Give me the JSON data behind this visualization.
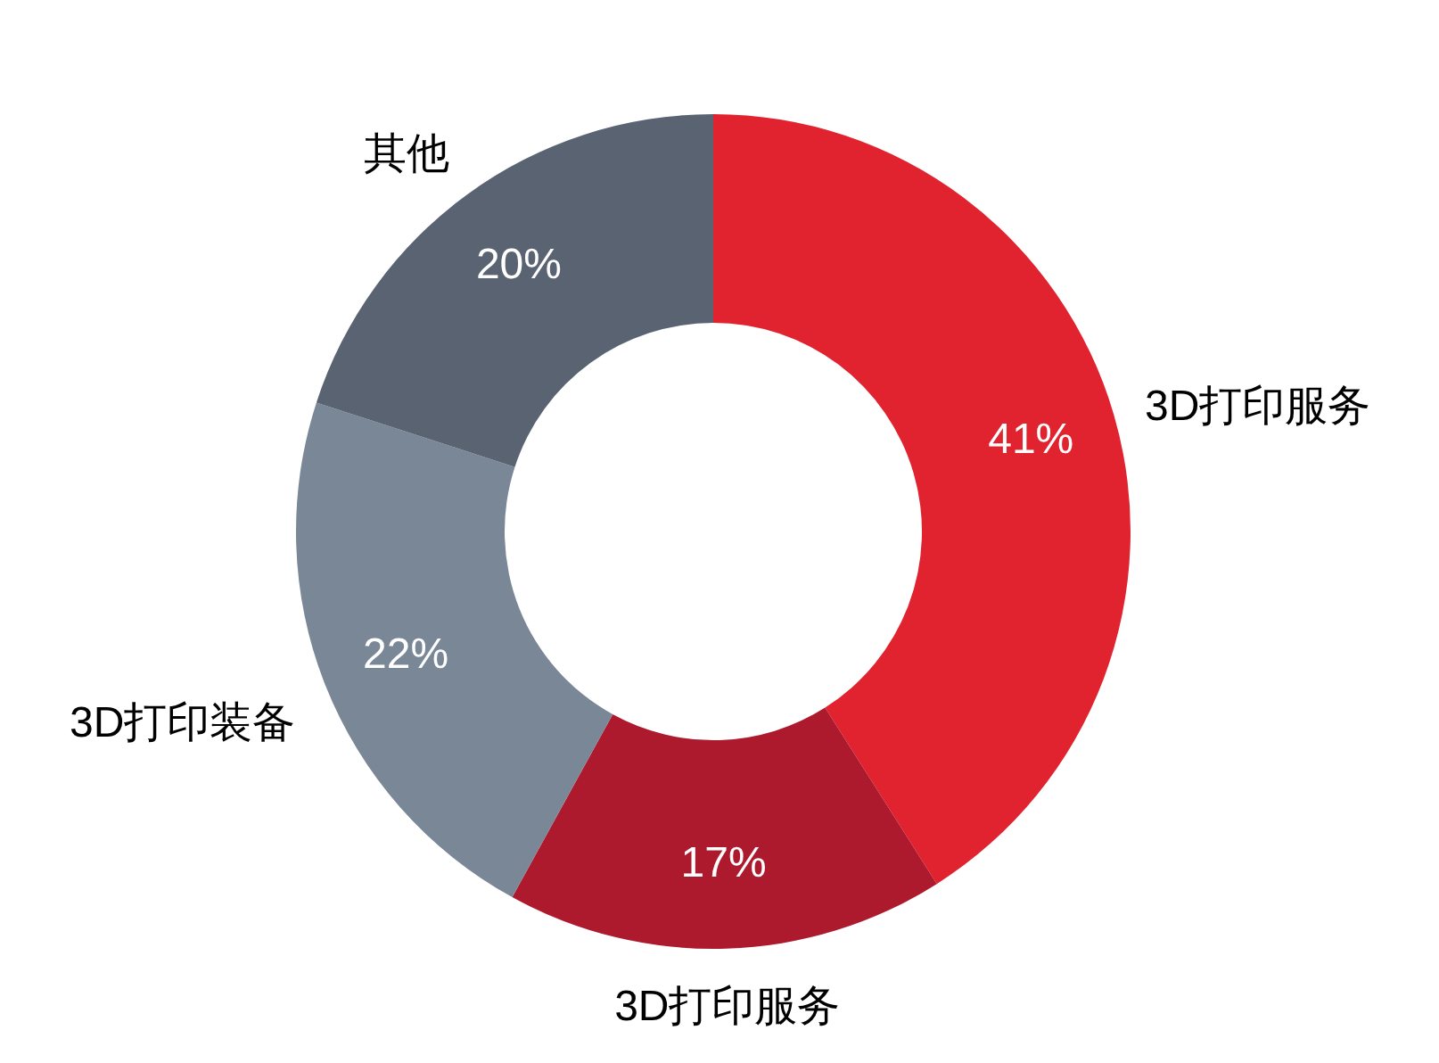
{
  "chart_data": {
    "type": "donut",
    "categories": [
      "3D打印服务",
      "3D打印服务",
      "3D打印装备",
      "其他"
    ],
    "values": [
      41,
      17,
      22,
      20
    ],
    "value_labels": [
      "41%",
      "17%",
      "22%",
      "20%"
    ],
    "colors": [
      "#e0232f",
      "#ae1a2d",
      "#7a8797",
      "#5a6372"
    ]
  }
}
